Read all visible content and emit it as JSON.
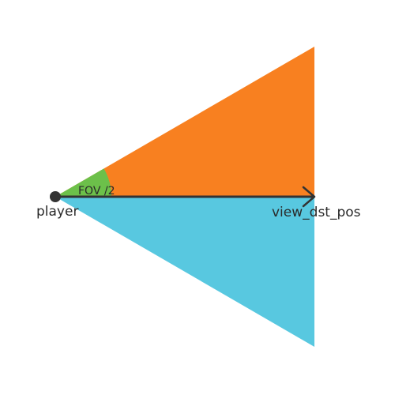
{
  "labels": {
    "origin": "player",
    "target": "view_dst_pos",
    "angle": "FOV /2"
  },
  "colors": {
    "upper_triangle": "#f88020",
    "lower_triangle": "#58c8e0",
    "angle_wedge": "#6cc04a",
    "line": "#333333",
    "text": "#2a2a2a"
  }
}
